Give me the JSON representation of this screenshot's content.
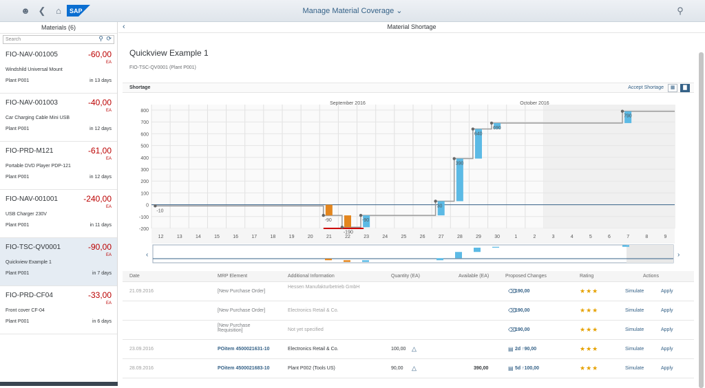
{
  "shell": {
    "title": "Manage Material Coverage",
    "logo_text": "SAP",
    "icons": [
      "user-icon",
      "back-icon",
      "home-icon",
      "search-icon"
    ]
  },
  "master": {
    "title": "Materials (6)",
    "search_placeholder": "Search",
    "items": [
      {
        "id": "FIO-NAV-001005",
        "amount": "-60,00",
        "unit": "EA",
        "desc": "Windshild Universal Mount",
        "plant": "Plant P001",
        "days": "in 13 days"
      },
      {
        "id": "FIO-NAV-001003",
        "amount": "-40,00",
        "unit": "EA",
        "desc": "Car Charging Cable Mini USB",
        "plant": "Plant P001",
        "days": "in 12 days"
      },
      {
        "id": "FIO-PRD-M121",
        "amount": "-61,00",
        "unit": "EA",
        "desc": "Portable DVD Player PDP-121",
        "plant": "Plant P001",
        "days": "in 12 days"
      },
      {
        "id": "FIO-NAV-001001",
        "amount": "-240,00",
        "unit": "EA",
        "desc": "USB Charger 230V",
        "plant": "Plant P001",
        "days": "in 11 days"
      },
      {
        "id": "FIO-TSC-QV0001",
        "amount": "-90,00",
        "unit": "EA",
        "desc": "Quickview Example 1",
        "plant": "Plant P001",
        "days": "in 7 days"
      },
      {
        "id": "FIO-PRD-CF04",
        "amount": "-33,00",
        "unit": "EA",
        "desc": "Front cover CF-04",
        "plant": "Plant P001",
        "days": "in 6 days"
      }
    ]
  },
  "detail": {
    "header": "Material Shortage",
    "title": "Quickview Example 1",
    "subtitle": "FIO-TSC-QV0001 (Plant P001)",
    "section": "Shortage",
    "accept": "Accept Shortage"
  },
  "chart_data": {
    "type": "bar",
    "months": [
      "September 2016",
      "October 2016"
    ],
    "x_ticks": [
      "12",
      "13",
      "14",
      "15",
      "16",
      "17",
      "18",
      "19",
      "20",
      "21",
      "22",
      "23",
      "24",
      "25",
      "26",
      "27",
      "28",
      "29",
      "30",
      "1",
      "2",
      "3",
      "4",
      "5",
      "6",
      "7",
      "8",
      "9"
    ],
    "y_ticks": [
      "800",
      "700",
      "600",
      "500",
      "400",
      "300",
      "200",
      "100",
      "0",
      "-100",
      "-200"
    ],
    "ylim": [
      -200,
      800
    ],
    "stock_points": [
      {
        "x": "12",
        "y": -10,
        "label": "-10"
      },
      {
        "x": "21",
        "y": -90,
        "label": "-90"
      },
      {
        "x": "22",
        "y": -190,
        "label": "-190"
      },
      {
        "x": "23",
        "y": -90,
        "label": "-90"
      },
      {
        "x": "27",
        "y": 30,
        "label": "30"
      },
      {
        "x": "28",
        "y": 390,
        "label": "390"
      },
      {
        "x": "29",
        "y": 640,
        "label": "640"
      },
      {
        "x": "30",
        "y": 690,
        "label": "690"
      },
      {
        "x": "7",
        "y": 790,
        "label": "790"
      }
    ],
    "bars": [
      {
        "x": "21",
        "from": 0,
        "to": -90,
        "kind": "demand"
      },
      {
        "x": "22",
        "from": -90,
        "to": -190,
        "kind": "demand"
      },
      {
        "x": "23",
        "from": -190,
        "to": -90,
        "kind": "supply"
      },
      {
        "x": "27",
        "from": -90,
        "to": 30,
        "kind": "supply"
      },
      {
        "x": "28",
        "from": 30,
        "to": 390,
        "kind": "supply"
      },
      {
        "x": "29",
        "from": 390,
        "to": 640,
        "kind": "supply"
      },
      {
        "x": "30",
        "from": 640,
        "to": 690,
        "kind": "supply"
      },
      {
        "x": "7",
        "from": 690,
        "to": 790,
        "kind": "supply"
      }
    ],
    "colors": {
      "supply": "#5cbae5",
      "demand": "#e3861f",
      "shortage": "#cc0000",
      "line": "#346187"
    }
  },
  "table": {
    "headers": [
      "Date",
      "MRP Element",
      "Additional Information",
      "Quantity (EA)",
      "Available (EA)",
      "Proposed Changes",
      "Rating",
      "Actions"
    ],
    "rows": [
      {
        "date": "21.09.2016",
        "mrp": "[New Purchase Order]",
        "info": "Hessen Manufakturbetrieb GmbH",
        "qty": "",
        "avail": "",
        "prop": "190,00",
        "stars": "★★★",
        "simulate": "Simulate",
        "apply": "Apply",
        "muted": true
      },
      {
        "date": "",
        "mrp": "[New Purchase Order]",
        "info": "Electronics Retail & Co.",
        "qty": "",
        "avail": "",
        "prop": "190,00",
        "stars": "★★★",
        "simulate": "Simulate",
        "apply": "Apply",
        "muted": true
      },
      {
        "date": "",
        "mrp": "[New Purchase Requisition]",
        "info": "Not yet specified",
        "qty": "",
        "avail": "",
        "prop": "190,00",
        "stars": "★★★",
        "simulate": "Simulate",
        "apply": "Apply",
        "muted": true
      },
      {
        "date": "23.09.2016",
        "mrp": "POitem 4500021631-10",
        "info": "Electronics Retail & Co.",
        "qty": "100,00",
        "avail": "",
        "prop": "2d ↑90,00",
        "stars": "★★★",
        "simulate": "Simulate",
        "apply": "Apply",
        "muted": false
      },
      {
        "date": "28.09.2016",
        "mrp": "POitem 4500021683-10",
        "info": "Plant P002 (Tools US)",
        "qty": "90,00",
        "avail": "390,00",
        "prop": "5d ↑100,00",
        "stars": "★★★",
        "simulate": "Simulate",
        "apply": "Apply",
        "muted": false
      }
    ]
  }
}
